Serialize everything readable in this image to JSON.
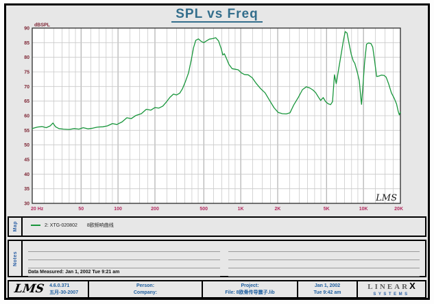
{
  "window": {
    "description": "LMS loudspeaker measurement report"
  },
  "sidebar": {
    "map_label": "Map",
    "notes_label": "Notes"
  },
  "legend": {
    "series_label": "2: XTG-020802",
    "series_description": "8欧频响曲线",
    "marker_color": "#17953a"
  },
  "notes": {
    "data_measured": "Data Measured: Jan  1, 2002  Tue  9:21 am"
  },
  "footer": {
    "logo": "LMS",
    "version": "4.6.0.371",
    "version_date": "五月-30-2007",
    "person_label": "Person:",
    "company_label": "Company:",
    "project_label": "Project:",
    "file_label": "File: 8欧骨传导震子.lib",
    "date": "Jan  1, 2002",
    "time": "Tue  9:42 am",
    "brand_linear": "LINEAR",
    "brand_x": "X",
    "brand_systems": "SYSTEMS"
  },
  "colors": {
    "title": "#336e8c",
    "curve": "#17953a",
    "y_labels": "#7d2433",
    "x_labels": "#b22a5e",
    "grid_minor": "#c9c9c9",
    "grid_major": "#9f9f9f",
    "blue_text": "#1d5d9e"
  },
  "chart_data": {
    "type": "line",
    "title": "SPL vs Freq",
    "ylabel": "dBSPL",
    "xlabel": "Hz",
    "watermark": "LMS",
    "x_scale": "log",
    "xlim": [
      20,
      20000
    ],
    "ylim": [
      30,
      90
    ],
    "grid": true,
    "legend_position": "below",
    "y_ticks": [
      30,
      35,
      40,
      45,
      50,
      55,
      60,
      65,
      70,
      75,
      80,
      85,
      90
    ],
    "x_ticks": [
      {
        "f": 20,
        "label": "20  Hz"
      },
      {
        "f": 50,
        "label": "50"
      },
      {
        "f": 100,
        "label": "100"
      },
      {
        "f": 200,
        "label": "200"
      },
      {
        "f": 500,
        "label": "500"
      },
      {
        "f": 1000,
        "label": "1K"
      },
      {
        "f": 2000,
        "label": "2K"
      },
      {
        "f": 5000,
        "label": "5K"
      },
      {
        "f": 10000,
        "label": "10K"
      },
      {
        "f": 20000,
        "label": "20K"
      }
    ],
    "minor_multipliers": [
      1,
      1.25,
      1.5,
      1.75,
      2,
      2.5,
      3,
      3.5,
      4,
      4.5,
      5,
      6,
      7,
      8,
      9
    ],
    "series": [
      {
        "name": "2: XTG-020802 8欧频响曲线",
        "color": "#17953a",
        "points": [
          [
            20,
            55.6
          ],
          [
            22,
            56.1
          ],
          [
            24,
            56.3
          ],
          [
            26,
            55.9
          ],
          [
            28,
            56.5
          ],
          [
            29.5,
            57.5
          ],
          [
            31,
            56.2
          ],
          [
            33,
            55.6
          ],
          [
            36,
            55.4
          ],
          [
            40,
            55.3
          ],
          [
            44,
            55.6
          ],
          [
            48,
            55.4
          ],
          [
            52,
            55.9
          ],
          [
            57,
            55.5
          ],
          [
            62,
            55.7
          ],
          [
            68,
            56.1
          ],
          [
            75,
            56.2
          ],
          [
            82,
            56.5
          ],
          [
            90,
            57.3
          ],
          [
            98,
            57.0
          ],
          [
            108,
            57.9
          ],
          [
            118,
            59.3
          ],
          [
            128,
            59.0
          ],
          [
            140,
            60.1
          ],
          [
            155,
            60.7
          ],
          [
            170,
            62.2
          ],
          [
            185,
            61.9
          ],
          [
            200,
            62.8
          ],
          [
            215,
            62.6
          ],
          [
            232,
            63.3
          ],
          [
            248,
            64.7
          ],
          [
            265,
            66.3
          ],
          [
            283,
            67.4
          ],
          [
            300,
            67.1
          ],
          [
            318,
            67.7
          ],
          [
            335,
            69.2
          ],
          [
            355,
            71.8
          ],
          [
            375,
            74.6
          ],
          [
            395,
            79.0
          ],
          [
            412,
            83.2
          ],
          [
            430,
            85.8
          ],
          [
            452,
            86.3
          ],
          [
            478,
            85.4
          ],
          [
            500,
            85.0
          ],
          [
            525,
            85.6
          ],
          [
            555,
            86.2
          ],
          [
            590,
            86.4
          ],
          [
            625,
            86.7
          ],
          [
            660,
            85.6
          ],
          [
            695,
            82.8
          ],
          [
            715,
            80.8
          ],
          [
            735,
            81.2
          ],
          [
            765,
            79.6
          ],
          [
            800,
            77.6
          ],
          [
            850,
            76.1
          ],
          [
            905,
            75.9
          ],
          [
            955,
            75.7
          ],
          [
            1010,
            74.7
          ],
          [
            1070,
            74.1
          ],
          [
            1150,
            74.0
          ],
          [
            1240,
            73.0
          ],
          [
            1340,
            71.0
          ],
          [
            1450,
            69.3
          ],
          [
            1580,
            67.8
          ],
          [
            1720,
            65.2
          ],
          [
            1870,
            62.7
          ],
          [
            2020,
            61.1
          ],
          [
            2180,
            60.7
          ],
          [
            2350,
            60.6
          ],
          [
            2520,
            61.0
          ],
          [
            2700,
            63.6
          ],
          [
            2950,
            66.3
          ],
          [
            3180,
            68.9
          ],
          [
            3420,
            69.9
          ],
          [
            3650,
            69.5
          ],
          [
            3880,
            68.8
          ],
          [
            4080,
            67.9
          ],
          [
            4280,
            66.5
          ],
          [
            4480,
            65.2
          ],
          [
            4700,
            66.2
          ],
          [
            4900,
            64.9
          ],
          [
            5150,
            64.1
          ],
          [
            5400,
            63.8
          ],
          [
            5600,
            64.8
          ],
          [
            5800,
            74.0
          ],
          [
            6000,
            71.0
          ],
          [
            6250,
            75.5
          ],
          [
            6550,
            80.5
          ],
          [
            6850,
            85.5
          ],
          [
            7100,
            88.8
          ],
          [
            7350,
            88.3
          ],
          [
            7650,
            84.5
          ],
          [
            7950,
            81.0
          ],
          [
            8250,
            78.8
          ],
          [
            8500,
            77.9
          ],
          [
            8900,
            74.9
          ],
          [
            9250,
            71.9
          ],
          [
            9500,
            66.5
          ],
          [
            9650,
            63.9
          ],
          [
            9900,
            70.0
          ],
          [
            10200,
            78.0
          ],
          [
            10600,
            84.5
          ],
          [
            11000,
            84.9
          ],
          [
            11500,
            84.7
          ],
          [
            11900,
            83.5
          ],
          [
            12300,
            79.2
          ],
          [
            12800,
            73.4
          ],
          [
            13400,
            73.6
          ],
          [
            14000,
            73.9
          ],
          [
            14700,
            73.8
          ],
          [
            15300,
            73.2
          ],
          [
            16000,
            71.0
          ],
          [
            16900,
            67.8
          ],
          [
            17800,
            66.0
          ],
          [
            18600,
            64.0
          ],
          [
            19200,
            61.5
          ],
          [
            19600,
            60.3
          ],
          [
            20000,
            61.2
          ]
        ]
      }
    ]
  }
}
